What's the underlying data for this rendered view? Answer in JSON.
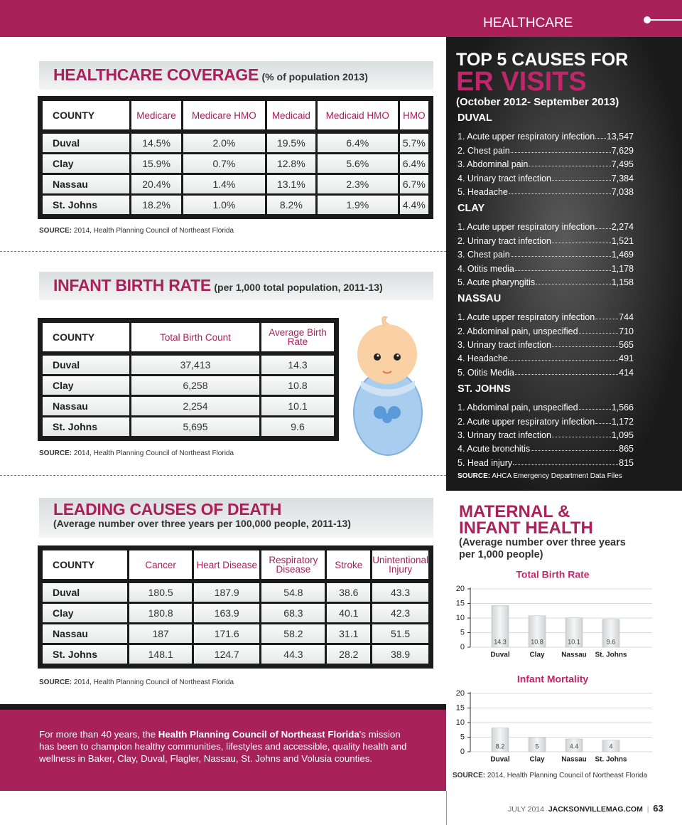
{
  "header": {
    "section": "HEALTHCARE"
  },
  "coverage": {
    "title": "HEALTHCARE COVERAGE",
    "subtitle": "(% of population 2013)",
    "columns": [
      "COUNTY",
      "Medicare",
      "Medicare HMO",
      "Medicaid",
      "Medicaid HMO",
      "HMO"
    ],
    "rows": [
      [
        "Duval",
        "14.5%",
        "2.0%",
        "19.5%",
        "6.4%",
        "5.7%"
      ],
      [
        "Clay",
        "15.9%",
        "0.7%",
        "12.8%",
        "5.6%",
        "6.4%"
      ],
      [
        "Nassau",
        "20.4%",
        "1.4%",
        "13.1%",
        "2.3%",
        "6.7%"
      ],
      [
        "St. Johns",
        "18.2%",
        "1.0%",
        "8.2%",
        "1.9%",
        "4.4%"
      ]
    ],
    "source_label": "SOURCE:",
    "source": "2014, Health Planning Council of Northeast Florida"
  },
  "birth_rate": {
    "title": "INFANT BIRTH RATE",
    "subtitle": "(per 1,000 total population, 2011-13)",
    "columns": [
      "COUNTY",
      "Total Birth Count",
      "Average Birth Rate"
    ],
    "rows": [
      [
        "Duval",
        "37,413",
        "14.3"
      ],
      [
        "Clay",
        "6,258",
        "10.8"
      ],
      [
        "Nassau",
        "2,254",
        "10.1"
      ],
      [
        "St. Johns",
        "5,695",
        "9.6"
      ]
    ],
    "source_label": "SOURCE:",
    "source": "2014, Health Planning Council of Northeast Florida"
  },
  "death": {
    "title": "LEADING CAUSES OF DEATH",
    "subtitle": "(Average number over three years per 100,000 people, 2011-13)",
    "columns": [
      "COUNTY",
      "Cancer",
      "Heart Disease",
      "Respiratory Disease",
      "Stroke",
      "Unintentional Injury"
    ],
    "rows": [
      [
        "Duval",
        "180.5",
        "187.9",
        "54.8",
        "38.6",
        "43.3"
      ],
      [
        "Clay",
        "180.8",
        "163.9",
        "68.3",
        "40.1",
        "42.3"
      ],
      [
        "Nassau",
        "187",
        "171.6",
        "58.2",
        "31.1",
        "51.5"
      ],
      [
        "St. Johns",
        "148.1",
        "124.7",
        "44.3",
        "28.2",
        "38.9"
      ]
    ],
    "source_label": "SOURCE:",
    "source": "2014, Health Planning Council of Northeast Florida"
  },
  "er_visits": {
    "title_line1": "TOP 5 CAUSES FOR",
    "title_line2": "ER VISITS",
    "period": "(October 2012- September 2013)",
    "groups": [
      {
        "county": "DUVAL",
        "items": [
          {
            "cause": "1. Acute upper respiratory infection",
            "count": "13,547"
          },
          {
            "cause": "2. Chest pain",
            "count": "7,629"
          },
          {
            "cause": "3. Abdominal pain",
            "count": "7,495"
          },
          {
            "cause": "4. Urinary tract infection",
            "count": "7,384"
          },
          {
            "cause": "5. Headache",
            "count": "7,038"
          }
        ]
      },
      {
        "county": "CLAY",
        "items": [
          {
            "cause": "1. Acute upper respiratory infection",
            "count": "2,274"
          },
          {
            "cause": "2. Urinary tract infection",
            "count": "1,521"
          },
          {
            "cause": "3. Chest pain",
            "count": "1,469"
          },
          {
            "cause": "4. Otitis media",
            "count": "1,178"
          },
          {
            "cause": "5. Acute pharyngitis",
            "count": "1,158"
          }
        ]
      },
      {
        "county": "NASSAU",
        "items": [
          {
            "cause": "1. Acute upper respiratory infection",
            "count": "744"
          },
          {
            "cause": "2. Abdominal pain, unspecified",
            "count": "710"
          },
          {
            "cause": "3. Urinary tract infection",
            "count": "565"
          },
          {
            "cause": "4. Headache",
            "count": "491"
          },
          {
            "cause": "5. Otitis Media",
            "count": "414"
          }
        ]
      },
      {
        "county": "ST. JOHNS",
        "items": [
          {
            "cause": "1. Abdominal pain, unspecified",
            "count": "1,566"
          },
          {
            "cause": "2. Acute upper respiratory infection",
            "count": "1,172"
          },
          {
            "cause": "3. Urinary tract infection",
            "count": "1,095"
          },
          {
            "cause": "4. Acute bronchitis",
            "count": "865"
          },
          {
            "cause": "5. Head injury",
            "count": "815"
          }
        ]
      }
    ],
    "source_label": "SOURCE:",
    "source": "AHCA Emergency Department Data Files"
  },
  "maternal": {
    "title_lines": [
      "MATERNAL &",
      "INFANT HEALTH"
    ],
    "subtitle_lines": [
      "(Average number over three years",
      "per 1,000 people)"
    ],
    "charts": [
      {
        "type": "bar",
        "title": "Total Birth Rate",
        "categories": [
          "Duval",
          "Clay",
          "Nassau",
          "St. Johns"
        ],
        "values": [
          14.3,
          10.8,
          10.1,
          9.6
        ],
        "ylim": [
          0,
          20
        ],
        "yticks": [
          0,
          5,
          10,
          15,
          20
        ],
        "grid": true,
        "color": "#cfd2d3"
      },
      {
        "type": "bar",
        "title": "Infant Mortality",
        "categories": [
          "Duval",
          "Clay",
          "Nassau",
          "St. Johns"
        ],
        "values": [
          8.2,
          5,
          4.4,
          4
        ],
        "ylim": [
          0,
          20
        ],
        "yticks": [
          0,
          5,
          10,
          15,
          20
        ],
        "grid": true,
        "color": "#cfd2d3"
      }
    ],
    "source_label": "SOURCE:",
    "source": "2014, Health Planning Council of Northeast Florida"
  },
  "about": {
    "before": "For more than 40 years, the ",
    "bold": "Health Planning Council of Northeast Florida",
    "after": "'s mission has been to champion healthy communities, lifestyles and accessible, quality health and wellness in Baker, Clay, Duval, Flagler, Nassau, St. Johns and Volusia counties."
  },
  "footer": {
    "date": "JULY 2014",
    "site": "JACKSONVILLEMAG.COM",
    "page": "63"
  }
}
